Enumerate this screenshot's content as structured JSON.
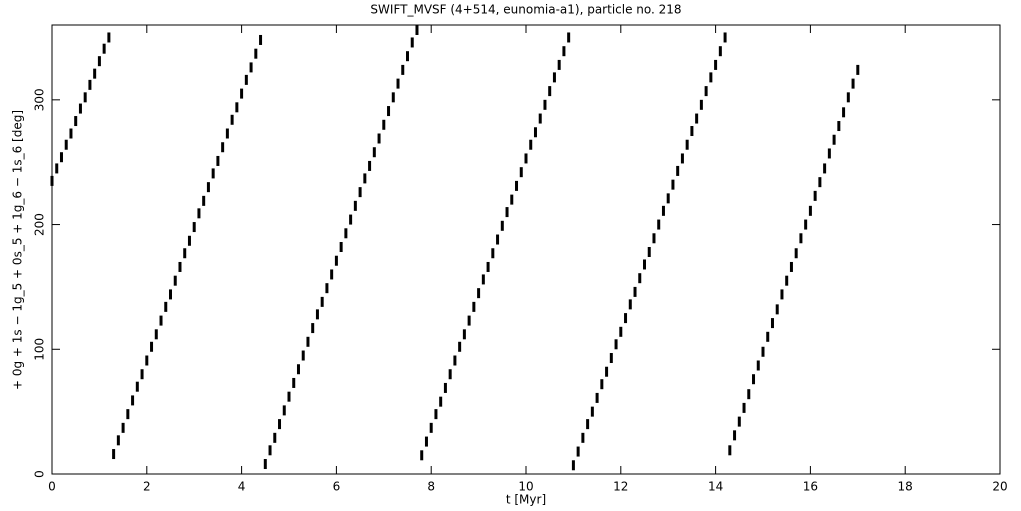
{
  "chart_data": {
    "type": "scatter",
    "title": "SWIFT_MVSF (4+514, eunomia-a1), particle no. 218",
    "x_label": "t [Myr]",
    "y_label": "+ 0g + 1s − 1g_5 + 0s_5 + 1g_6 − 1s_6 [deg]",
    "xlim": [
      0,
      20
    ],
    "xticks": [
      0,
      2,
      4,
      6,
      8,
      10,
      12,
      14,
      16,
      18,
      20
    ],
    "ylim": [
      0,
      360
    ],
    "yticks": [
      0,
      100,
      200,
      300
    ],
    "color": "#000000",
    "x": [
      0,
      0.1,
      0.2,
      0.3,
      0.4,
      0.5,
      0.6,
      0.7,
      0.8,
      0.9,
      1.0,
      1.1,
      1.2,
      1.3,
      1.4,
      1.5,
      1.6,
      1.7,
      1.8,
      1.9,
      2.0,
      2.1,
      2.2,
      2.3,
      2.4,
      2.5,
      2.6,
      2.7,
      2.8,
      2.9,
      3.0,
      3.1,
      3.2,
      3.3,
      3.4,
      3.5,
      3.6,
      3.7,
      3.8,
      3.9,
      4.0,
      4.1,
      4.2,
      4.3,
      4.4,
      4.5,
      4.6,
      4.7,
      4.8,
      4.9,
      5.0,
      5.1,
      5.2,
      5.3,
      5.4,
      5.5,
      5.6,
      5.7,
      5.8,
      5.9,
      6.0,
      6.1,
      6.2,
      6.3,
      6.4,
      6.5,
      6.6,
      6.7,
      6.8,
      6.9,
      7.0,
      7.1,
      7.2,
      7.3,
      7.4,
      7.5,
      7.6,
      7.7,
      7.8,
      7.9,
      8.0,
      8.1,
      8.2,
      8.3,
      8.4,
      8.5,
      8.6,
      8.7,
      8.8,
      8.9,
      9.0,
      9.1,
      9.2,
      9.3,
      9.4,
      9.5,
      9.6,
      9.7,
      9.8,
      9.9,
      10.0,
      10.1,
      10.2,
      10.3,
      10.4,
      10.5,
      10.6,
      10.7,
      10.8,
      10.9,
      11.0,
      11.1,
      11.2,
      11.3,
      11.4,
      11.5,
      11.6,
      11.7,
      11.8,
      11.9,
      12.0,
      12.1,
      12.2,
      12.3,
      12.4,
      12.5,
      12.6,
      12.7,
      12.8,
      12.9,
      13.0,
      13.1,
      13.2,
      13.3,
      13.4,
      13.5,
      13.6,
      13.7,
      13.8,
      13.9,
      14.0,
      14.1,
      14.2,
      14.3,
      14.4,
      14.5,
      14.6,
      14.7,
      14.8,
      14.9,
      15.0,
      15.1,
      15.2,
      15.3,
      15.4,
      15.5,
      15.6,
      15.7,
      15.8,
      15.9,
      16.0,
      16.1,
      16.2,
      16.3,
      16.4,
      16.5,
      16.6,
      16.7,
      16.8,
      16.9,
      17.0
    ],
    "values": [
      235,
      245,
      254,
      264,
      273,
      283,
      293,
      302,
      312,
      321,
      331,
      341,
      350,
      16,
      27,
      37,
      48,
      59,
      70,
      80,
      91,
      102,
      112,
      123,
      134,
      144,
      155,
      166,
      177,
      187,
      198,
      209,
      219,
      230,
      241,
      251,
      262,
      273,
      284,
      294,
      305,
      316,
      326,
      337,
      348,
      8,
      19,
      29,
      40,
      51,
      62,
      73,
      84,
      95,
      106,
      117,
      128,
      138,
      149,
      160,
      171,
      182,
      193,
      204,
      215,
      226,
      237,
      247,
      258,
      269,
      280,
      291,
      302,
      313,
      324,
      335,
      346,
      356,
      15,
      26,
      37,
      48,
      58,
      69,
      80,
      91,
      102,
      112,
      123,
      134,
      145,
      156,
      166,
      177,
      188,
      199,
      210,
      220,
      231,
      242,
      253,
      264,
      274,
      285,
      296,
      307,
      318,
      328,
      339,
      350,
      7,
      18,
      29,
      40,
      50,
      61,
      72,
      82,
      93,
      104,
      114,
      125,
      136,
      146,
      157,
      168,
      178,
      189,
      200,
      211,
      221,
      232,
      243,
      253,
      264,
      275,
      285,
      296,
      307,
      318,
      328,
      339,
      350,
      19,
      31,
      42,
      53,
      64,
      76,
      87,
      98,
      110,
      121,
      132,
      144,
      155,
      166,
      177,
      189,
      200,
      211,
      223,
      234,
      245,
      257,
      268,
      279,
      290,
      302,
      313,
      324
    ]
  }
}
